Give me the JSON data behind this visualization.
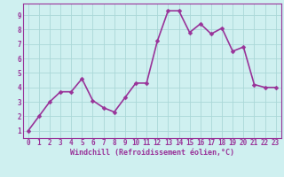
{
  "x": [
    0,
    1,
    2,
    3,
    4,
    5,
    6,
    7,
    8,
    9,
    10,
    11,
    12,
    13,
    14,
    15,
    16,
    17,
    18,
    19,
    20,
    21,
    22,
    23
  ],
  "y": [
    1.0,
    2.0,
    3.0,
    3.7,
    3.7,
    4.6,
    3.1,
    2.6,
    2.3,
    3.3,
    4.3,
    4.3,
    7.2,
    9.3,
    9.3,
    7.8,
    8.4,
    7.7,
    8.1,
    6.5,
    6.8,
    4.2,
    4.0,
    4.0
  ],
  "xlabel": "Windchill (Refroidissement éolien,°C)",
  "line_color": "#993399",
  "marker_color": "#993399",
  "bg_color": "#cff0f0",
  "grid_color": "#aad8d8",
  "tick_label_color": "#993399",
  "axis_label_color": "#993399",
  "border_color": "#993399",
  "xlim": [
    -0.5,
    23.5
  ],
  "ylim": [
    0.5,
    9.8
  ],
  "yticks": [
    1,
    2,
    3,
    4,
    5,
    6,
    7,
    8,
    9
  ],
  "xticks": [
    0,
    1,
    2,
    3,
    4,
    5,
    6,
    7,
    8,
    9,
    10,
    11,
    12,
    13,
    14,
    15,
    16,
    17,
    18,
    19,
    20,
    21,
    22,
    23
  ],
  "xtick_labels": [
    "0",
    "1",
    "2",
    "3",
    "4",
    "5",
    "6",
    "7",
    "8",
    "9",
    "10",
    "11",
    "12",
    "13",
    "14",
    "15",
    "16",
    "17",
    "18",
    "19",
    "20",
    "21",
    "22",
    "23"
  ],
  "linewidth": 1.2,
  "markersize": 2.5,
  "tick_fontsize": 5.5,
  "xlabel_fontsize": 6.0
}
